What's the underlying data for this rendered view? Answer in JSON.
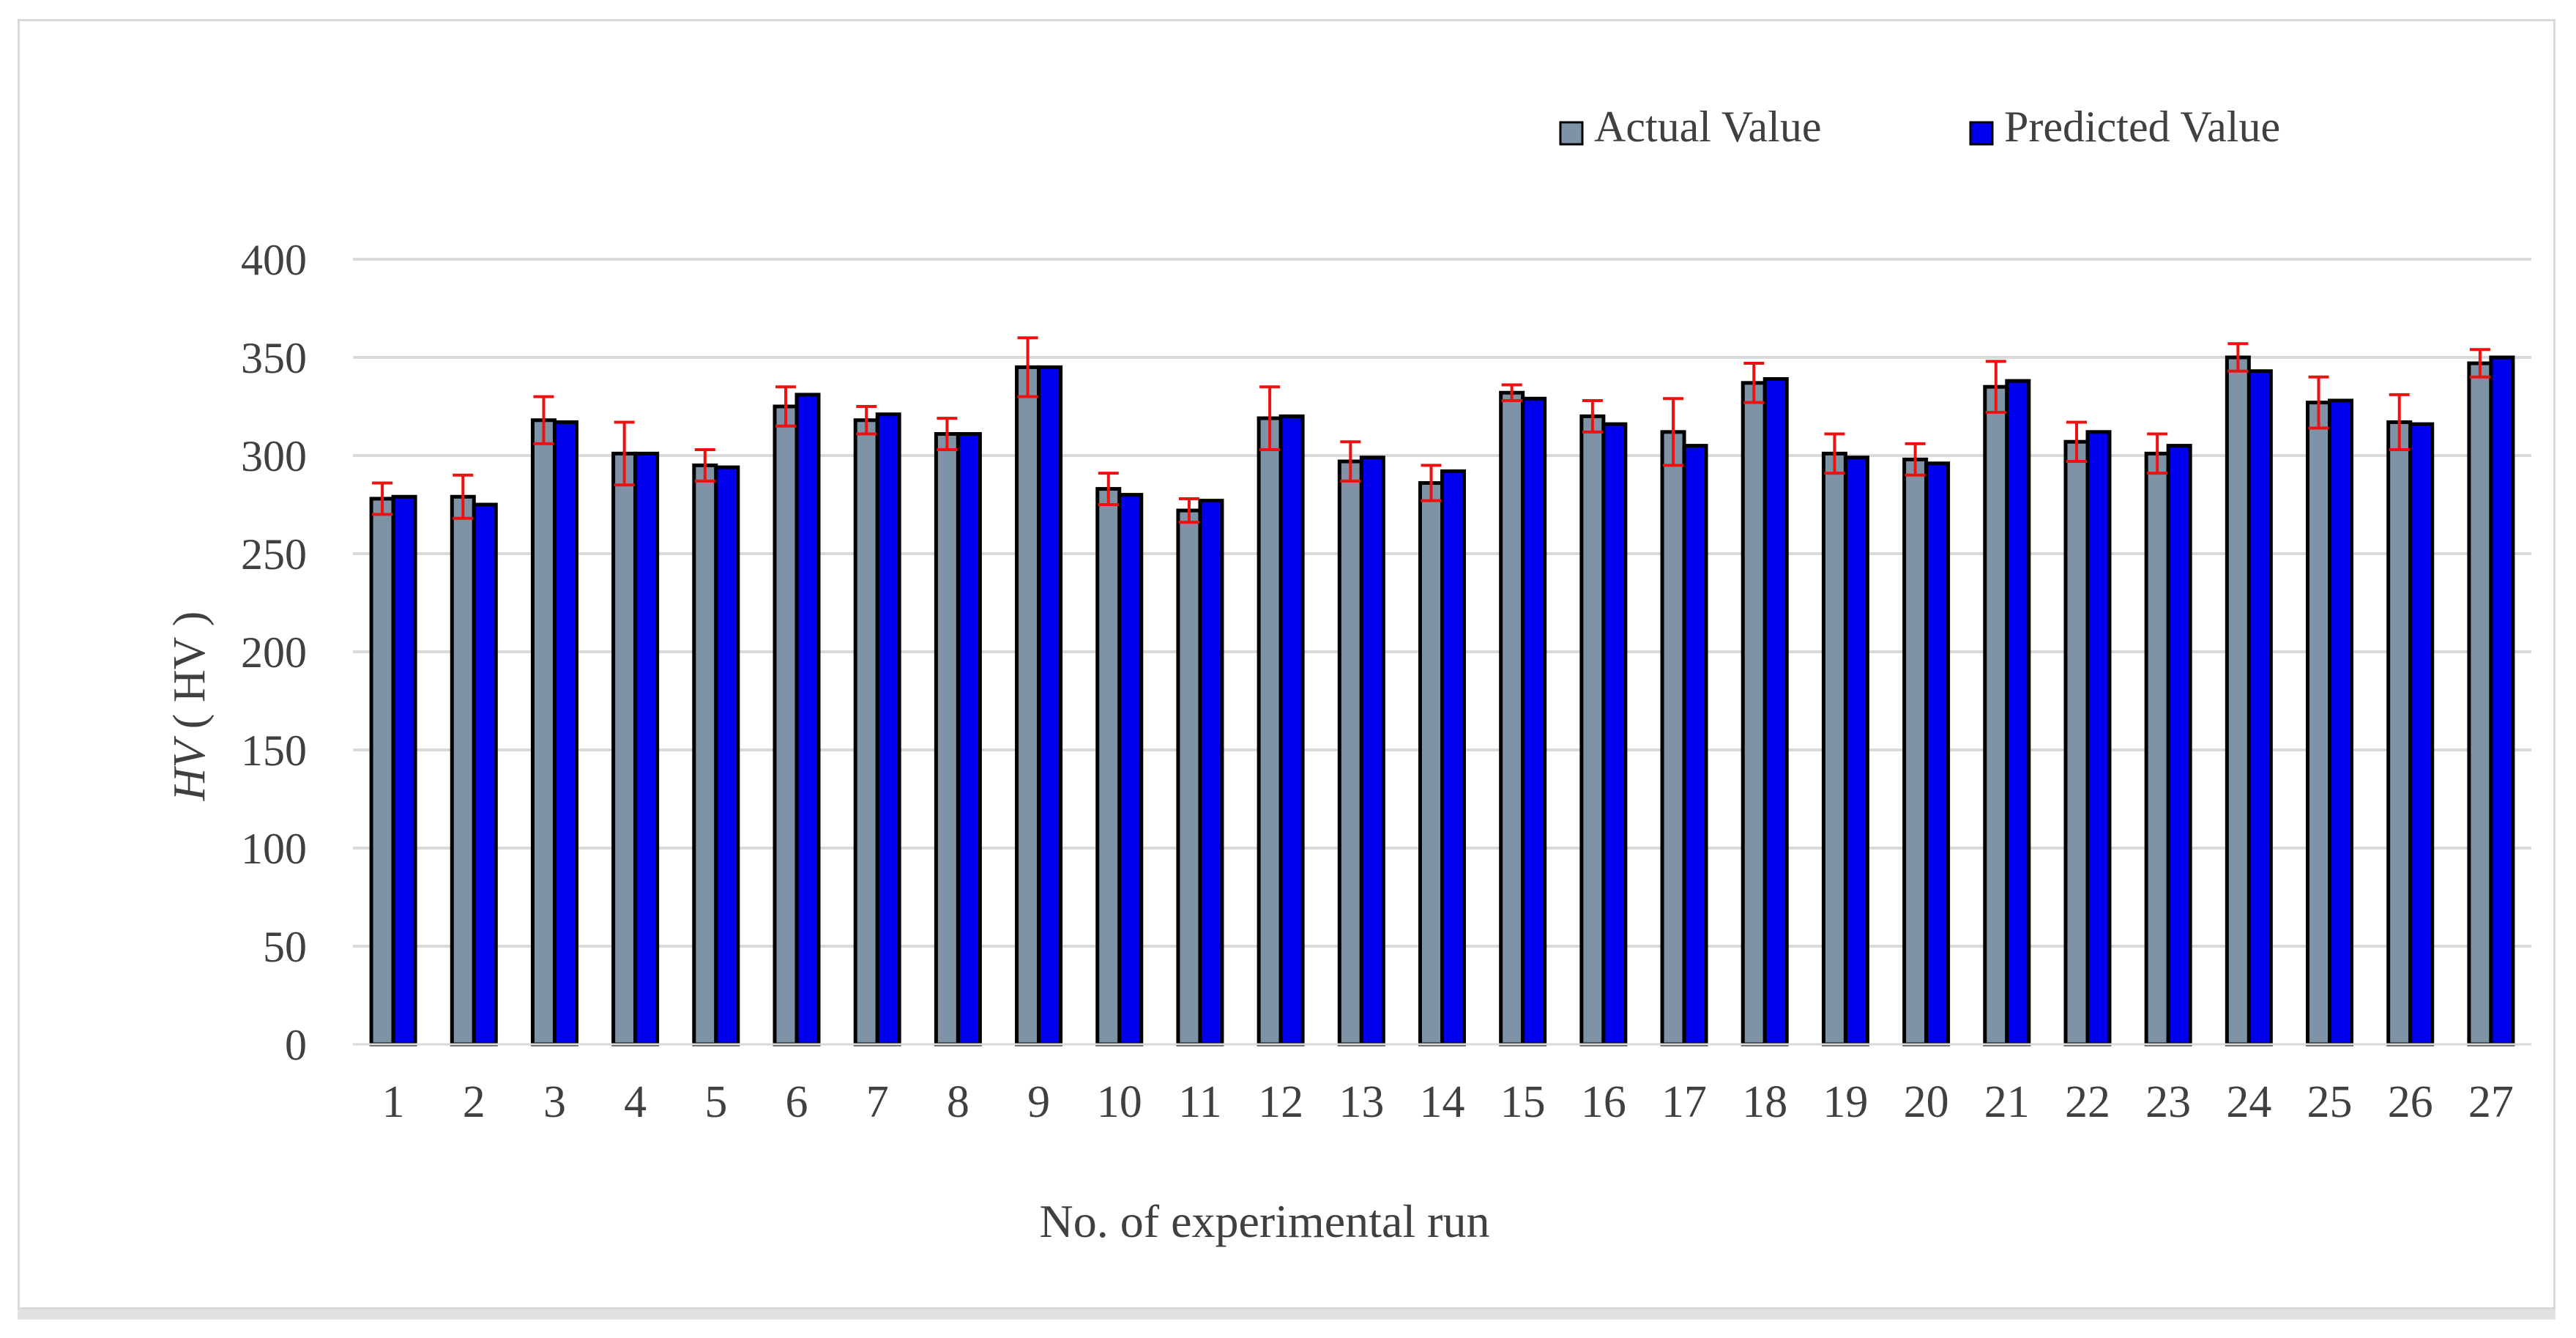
{
  "chart_data": {
    "type": "bar",
    "title": "",
    "xlabel": "No. of experimental run",
    "ylabel_italic": "HV",
    "ylabel_unit": " ( HV )",
    "ylim": [
      0,
      400
    ],
    "yticks": [
      0,
      50,
      100,
      150,
      200,
      250,
      300,
      350,
      400
    ],
    "grid": "horizontal",
    "legend_position": "top-right",
    "categories": [
      "1",
      "2",
      "3",
      "4",
      "5",
      "6",
      "7",
      "8",
      "9",
      "10",
      "11",
      "12",
      "13",
      "14",
      "15",
      "16",
      "17",
      "18",
      "19",
      "20",
      "21",
      "22",
      "23",
      "24",
      "25",
      "26",
      "27"
    ],
    "series": [
      {
        "name": "Actual Value",
        "color": "#7f93a7",
        "values": [
          278,
          279,
          318,
          301,
          295,
          325,
          318,
          311,
          345,
          283,
          272,
          319,
          297,
          286,
          332,
          320,
          312,
          337,
          301,
          298,
          335,
          307,
          301,
          350,
          327,
          317,
          347
        ],
        "error": [
          8,
          11,
          12,
          16,
          8,
          10,
          7,
          8,
          15,
          8,
          6,
          16,
          10,
          9,
          4,
          8,
          17,
          10,
          10,
          8,
          13,
          10,
          10,
          7,
          13,
          14,
          7
        ]
      },
      {
        "name": "Predicted Value",
        "color": "#0000ee",
        "values": [
          279,
          275,
          317,
          301,
          294,
          331,
          321,
          311,
          345,
          280,
          277,
          320,
          299,
          292,
          329,
          316,
          305,
          339,
          299,
          296,
          338,
          312,
          305,
          343,
          328,
          316,
          350
        ]
      }
    ],
    "error_bar_color": "#ee1111"
  }
}
